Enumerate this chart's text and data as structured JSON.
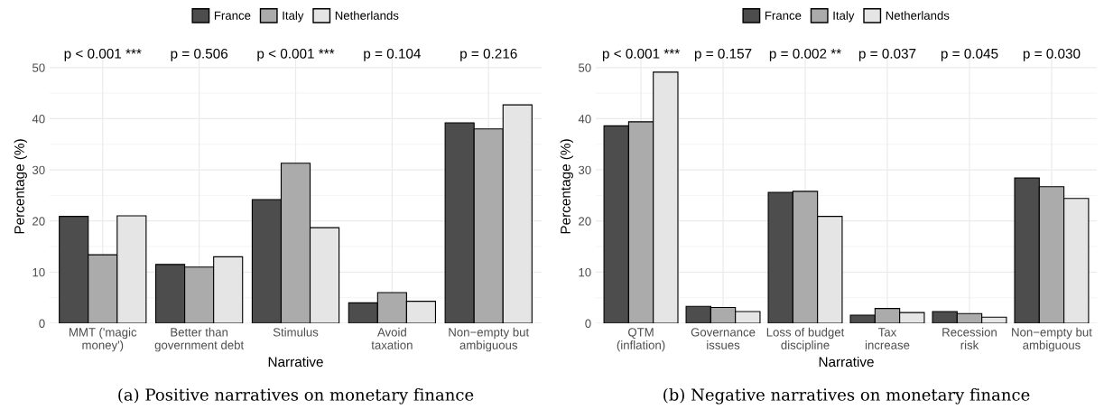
{
  "chart_data": [
    {
      "type": "bar",
      "title": "(a) Positive narratives on monetary finance",
      "xlabel": "Narrative",
      "ylabel": "Percentage (%)",
      "categories": [
        "MMT ('magic\nmoney')",
        "Better than\ngovernment debt",
        "Stimulus",
        "Avoid\ntaxation",
        "Non−empty but\nambiguous"
      ],
      "series": [
        {
          "name": "France",
          "color": "#4d4d4d",
          "values": [
            20.9,
            11.5,
            24.2,
            4.0,
            39.2
          ]
        },
        {
          "name": "Italy",
          "color": "#ababab",
          "values": [
            13.4,
            11.0,
            31.3,
            6.0,
            38.0
          ]
        },
        {
          "name": "Netherlands",
          "color": "#e5e5e5",
          "values": [
            21.0,
            13.0,
            18.7,
            4.3,
            42.7
          ]
        }
      ],
      "ylim": [
        0,
        53.5
      ],
      "yticks": [
        0,
        10,
        20,
        30,
        40,
        50
      ],
      "grid": true,
      "legend": "top",
      "annotations": [
        "p < 0.001 ***",
        "p = 0.506",
        "p < 0.001 ***",
        "p = 0.104",
        "p = 0.216"
      ]
    },
    {
      "type": "bar",
      "title": "(b) Negative narratives on monetary finance",
      "xlabel": "Narrative",
      "ylabel": "Percentage (%)",
      "categories": [
        "QTM\n(inflation)",
        "Governance\nissues",
        "Loss of budget\ndiscipline",
        "Tax\nincrease",
        "Recession\nrisk",
        "Non−empty but\nambiguous"
      ],
      "series": [
        {
          "name": "France",
          "color": "#4d4d4d",
          "values": [
            38.6,
            3.3,
            25.6,
            1.6,
            2.3,
            28.4
          ]
        },
        {
          "name": "Italy",
          "color": "#ababab",
          "values": [
            39.4,
            3.1,
            25.8,
            2.9,
            1.9,
            26.7
          ]
        },
        {
          "name": "Netherlands",
          "color": "#e5e5e5",
          "values": [
            49.1,
            2.3,
            20.9,
            2.1,
            1.2,
            24.4
          ]
        }
      ],
      "ylim": [
        0,
        53.5
      ],
      "yticks": [
        0,
        10,
        20,
        30,
        40,
        50
      ],
      "grid": true,
      "legend": "top",
      "annotations": [
        "p < 0.001 ***",
        "p = 0.157",
        "p = 0.002 **",
        "p = 0.037",
        "p = 0.045",
        "p = 0.030"
      ]
    }
  ]
}
